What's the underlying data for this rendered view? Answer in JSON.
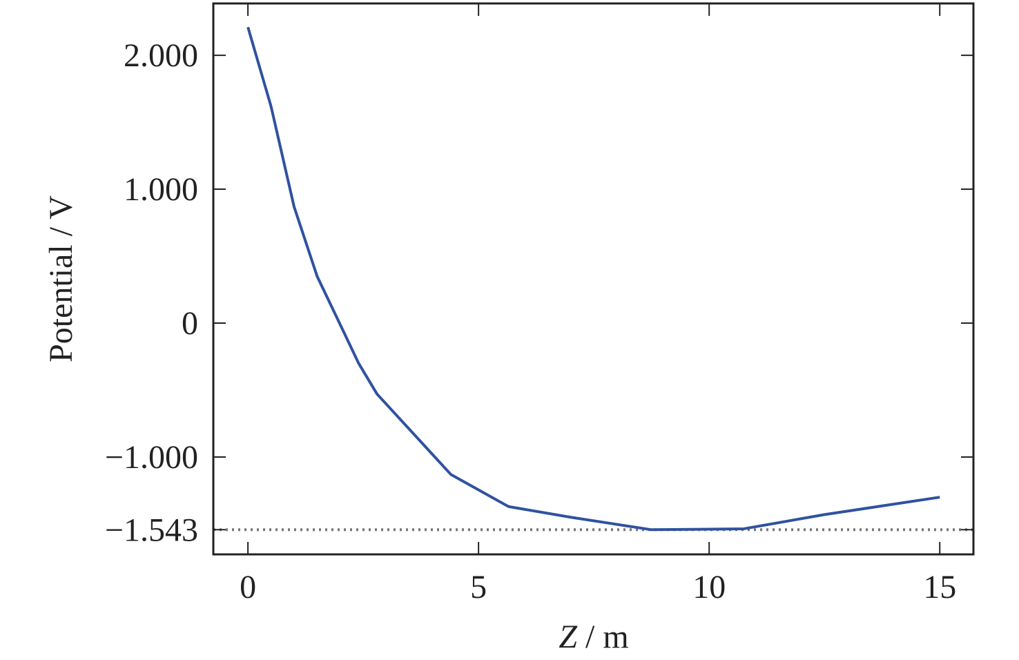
{
  "chart_data": {
    "type": "line",
    "x_label": {
      "symbol": "Z",
      "unit": "/ m"
    },
    "y_label": "Potential / V",
    "x": [
      0,
      0.5,
      1,
      1.5,
      2,
      2.4,
      2.8,
      4.4,
      5.65,
      7,
      8.75,
      10.75,
      12.5,
      15
    ],
    "series": [
      {
        "name": "Potential",
        "color": "#2f52a0",
        "values": [
          2.21,
          1.62,
          0.87,
          0.35,
          -0.01,
          -0.3,
          -0.53,
          -1.13,
          -1.37,
          -1.45,
          -1.543,
          -1.536,
          -1.43,
          -1.3
        ]
      }
    ],
    "xlim": [
      -0.75,
      15.73
    ],
    "ylim": [
      -1.727,
      2.387
    ],
    "xticks": [
      0,
      5,
      10,
      15
    ],
    "yticks": [
      {
        "value": 2,
        "label": "2.000"
      },
      {
        "value": 1,
        "label": "1.000"
      },
      0,
      {
        "value": -1,
        "label": "−1.000"
      },
      {
        "value": -1.543,
        "label": "−1.543"
      }
    ],
    "hline": -1.543,
    "grid": false
  }
}
